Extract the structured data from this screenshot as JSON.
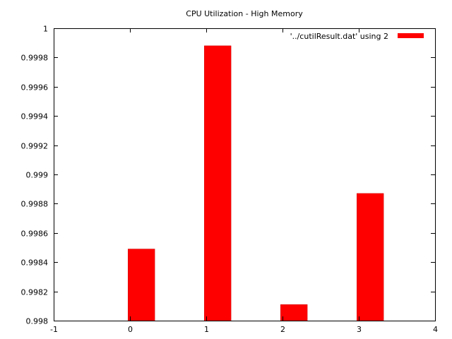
{
  "chart_data": {
    "type": "bar",
    "title": "CPU Utilization - High Memory",
    "xlabel": "",
    "ylabel": "",
    "x": [
      0,
      1,
      2,
      3
    ],
    "series": [
      {
        "name": "'../cutilResult.dat' using 2",
        "values": [
          0.99849,
          0.99988,
          0.99811,
          0.99887
        ],
        "color": "#ff0000"
      }
    ],
    "xlim": [
      -1,
      4
    ],
    "ylim": [
      0.998,
      1.0
    ],
    "xticks": [
      "-1",
      "0",
      "1",
      "2",
      "3",
      "4"
    ],
    "yticks": [
      "0.998",
      "0.9982",
      "0.9984",
      "0.9986",
      "0.9988",
      "0.999",
      "0.9992",
      "0.9994",
      "0.9996",
      "0.9998",
      "1"
    ],
    "grid": false,
    "legend_position": "top-right"
  }
}
